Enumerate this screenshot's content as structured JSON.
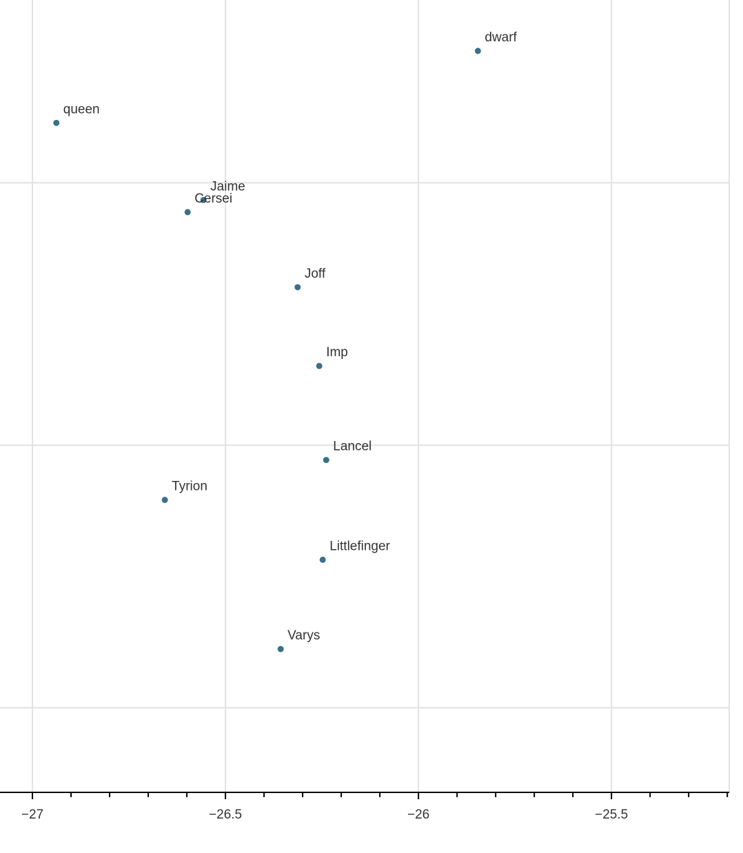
{
  "chart_data": {
    "type": "scatter",
    "labels": [
      "dwarf",
      "queen",
      "Jaime",
      "Cersei",
      "Joff",
      "Imp",
      "Lancel",
      "Tyrion",
      "Littlefinger",
      "Varys"
    ],
    "x": [
      -25.846,
      -26.938,
      -26.557,
      -26.598,
      -26.313,
      -26.257,
      -26.239,
      -26.657,
      -26.248,
      -26.357
    ],
    "values": [
      0.251,
      0.114,
      -0.033,
      -0.056,
      -0.199,
      -0.349,
      -0.528,
      -0.604,
      -0.718,
      -0.888
    ],
    "color": "#3b7088",
    "xlim": [
      -27.084,
      -25.195
    ],
    "xticks": [
      {
        "value": -27,
        "label": "−27"
      },
      {
        "value": -26.5,
        "label": "−26.5"
      },
      {
        "value": -26,
        "label": "−26"
      },
      {
        "value": -25.5,
        "label": "−25.5"
      }
    ],
    "xminorticks": [
      -26.9,
      -26.8,
      -26.7,
      -26.6,
      -26.4,
      -26.3,
      -26.2,
      -26.1,
      -25.9,
      -25.8,
      -25.7,
      -25.6,
      -25.4,
      -25.3,
      -25.2
    ],
    "ylim": [
      -1.161,
      0.348
    ],
    "yticks": [
      0,
      -0.5,
      -1
    ],
    "grid": true
  }
}
